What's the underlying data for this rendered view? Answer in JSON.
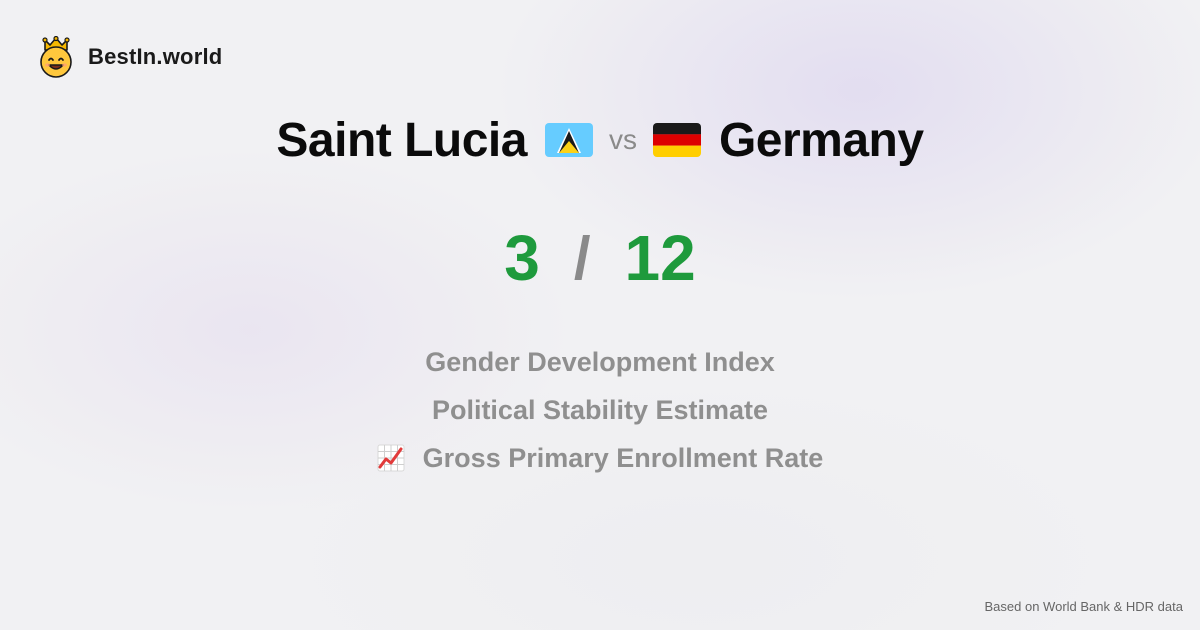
{
  "brand": {
    "name": "BestIn.world",
    "logo_icon": "crown-smiley-icon"
  },
  "comparison": {
    "left": {
      "name": "Saint Lucia",
      "flag_icon": "saint-lucia-flag-icon"
    },
    "vs_label": "vs",
    "right": {
      "name": "Germany",
      "flag_icon": "germany-flag-icon"
    }
  },
  "score": {
    "left": "3",
    "separator": "/",
    "right": "12",
    "color": "#1e9a3c"
  },
  "metrics": [
    {
      "label": "Gender Development Index"
    },
    {
      "label": "Political Stability Estimate"
    },
    {
      "label": "Gross Primary Enrollment Rate",
      "icon": "chart-increasing-icon"
    }
  ],
  "footer": {
    "source": "Based on World Bank & HDR data"
  }
}
